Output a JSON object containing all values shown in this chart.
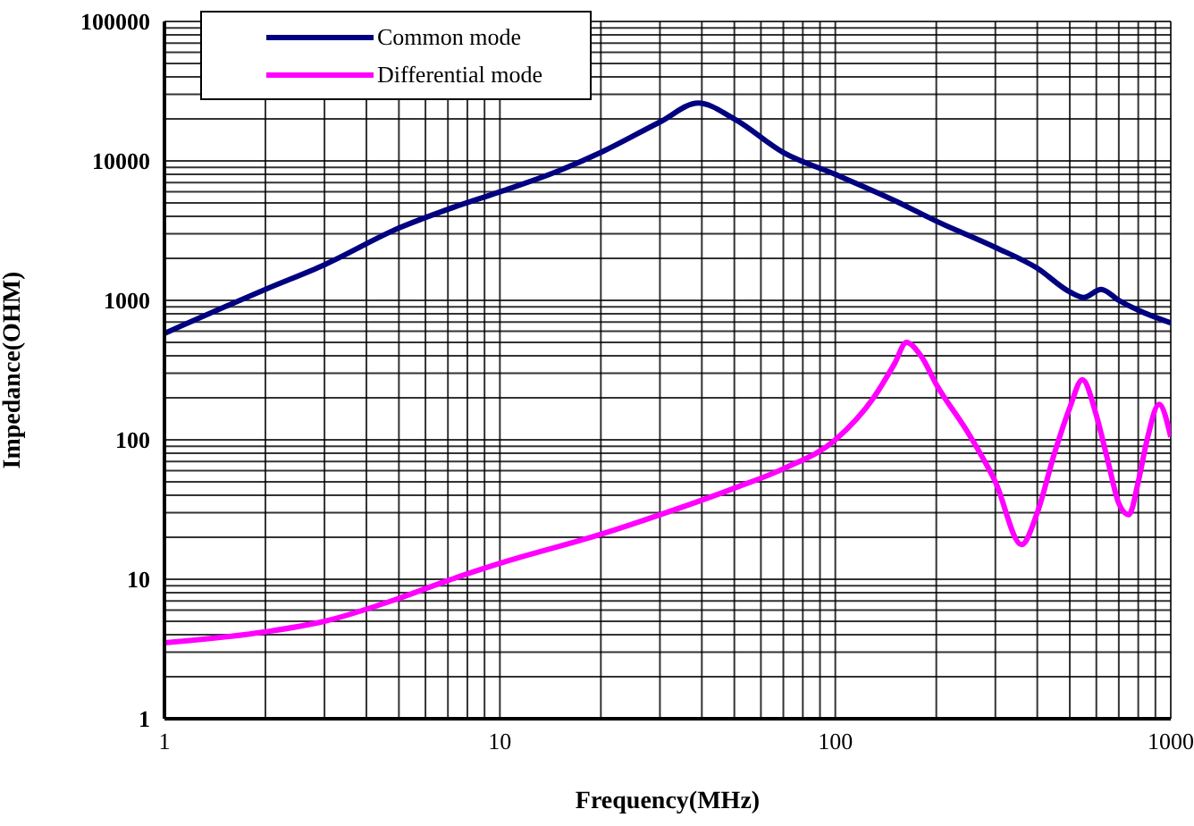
{
  "chart_data": {
    "type": "line",
    "xlabel": "Frequency(MHz)",
    "ylabel": "Impedance(OHM)",
    "log": "xy",
    "grid": true,
    "legend": "top left",
    "marker": "none",
    "line_style": "solid",
    "xlim": [
      1,
      1000
    ],
    "ylim": [
      1,
      100000
    ],
    "xticks": [
      1,
      {
        "value": 2,
        "label": null
      },
      {
        "value": 3,
        "label": null
      },
      {
        "value": 4,
        "label": null
      },
      {
        "value": 5,
        "label": null
      },
      {
        "value": 6,
        "label": null
      },
      {
        "value": 7,
        "label": null
      },
      {
        "value": 8,
        "label": null
      },
      {
        "value": 9,
        "label": null
      },
      10,
      {
        "value": 20,
        "label": null
      },
      {
        "value": 30,
        "label": null
      },
      {
        "value": 40,
        "label": null
      },
      {
        "value": 50,
        "label": null
      },
      {
        "value": 60,
        "label": null
      },
      {
        "value": 70,
        "label": null
      },
      {
        "value": 80,
        "label": null
      },
      {
        "value": 90,
        "label": null
      },
      100,
      {
        "value": 200,
        "label": null
      },
      {
        "value": 300,
        "label": null
      },
      {
        "value": 400,
        "label": null
      },
      {
        "value": 500,
        "label": null
      },
      {
        "value": 600,
        "label": null
      },
      {
        "value": 700,
        "label": null
      },
      {
        "value": 800,
        "label": null
      },
      {
        "value": 900,
        "label": null
      },
      1000
    ],
    "yticks": [
      1,
      {
        "value": 2,
        "label": null
      },
      {
        "value": 3,
        "label": null
      },
      {
        "value": 4,
        "label": null
      },
      {
        "value": 5,
        "label": null
      },
      {
        "value": 6,
        "label": null
      },
      {
        "value": 7,
        "label": null
      },
      {
        "value": 8,
        "label": null
      },
      {
        "value": 9,
        "label": null
      },
      10,
      {
        "value": 20,
        "label": null
      },
      {
        "value": 30,
        "label": null
      },
      {
        "value": 40,
        "label": null
      },
      {
        "value": 50,
        "label": null
      },
      {
        "value": 60,
        "label": null
      },
      {
        "value": 70,
        "label": null
      },
      {
        "value": 80,
        "label": null
      },
      {
        "value": 90,
        "label": null
      },
      100,
      {
        "value": 200,
        "label": null
      },
      {
        "value": 300,
        "label": null
      },
      {
        "value": 400,
        "label": null
      },
      {
        "value": 500,
        "label": null
      },
      {
        "value": 600,
        "label": null
      },
      {
        "value": 700,
        "label": null
      },
      {
        "value": 800,
        "label": null
      },
      {
        "value": 900,
        "label": null
      },
      1000,
      {
        "value": 2000,
        "label": null
      },
      {
        "value": 3000,
        "label": null
      },
      {
        "value": 4000,
        "label": null
      },
      {
        "value": 5000,
        "label": null
      },
      {
        "value": 6000,
        "label": null
      },
      {
        "value": 7000,
        "label": null
      },
      {
        "value": 8000,
        "label": null
      },
      {
        "value": 9000,
        "label": null
      },
      10000,
      {
        "value": 20000,
        "label": null
      },
      {
        "value": 30000,
        "label": null
      },
      {
        "value": 40000,
        "label": null
      },
      {
        "value": 50000,
        "label": null
      },
      {
        "value": 60000,
        "label": null
      },
      {
        "value": 70000,
        "label": null
      },
      {
        "value": 80000,
        "label": null
      },
      {
        "value": 90000,
        "label": null
      },
      100000
    ],
    "series": [
      {
        "name": "Common mode",
        "color": "#000080",
        "x": [
          1,
          2,
          3,
          5,
          7,
          10,
          15,
          20,
          30,
          39,
          50,
          70,
          100,
          150,
          200,
          300,
          400,
          500,
          550,
          620,
          700,
          800,
          1000
        ],
        "values": [
          580,
          1200,
          1800,
          3300,
          4500,
          6000,
          8500,
          11500,
          19000,
          26000,
          20000,
          11500,
          8000,
          5200,
          3700,
          2400,
          1700,
          1150,
          1050,
          1200,
          1000,
          850,
          690
        ]
      },
      {
        "name": "Differential mode",
        "color": "#ff00ff",
        "x": [
          1,
          2,
          3,
          5,
          7,
          10,
          20,
          30,
          50,
          70,
          100,
          130,
          150,
          163,
          180,
          200,
          250,
          300,
          359,
          400,
          450,
          500,
          545,
          600,
          650,
          700,
          750,
          800,
          850,
          923,
          1000
        ],
        "values": [
          3.5,
          4.2,
          5,
          7.3,
          9.8,
          13,
          21,
          29,
          45,
          62,
          100,
          200,
          350,
          500,
          400,
          250,
          110,
          50,
          17.7,
          30,
          80,
          170,
          270,
          150,
          70,
          35,
          29,
          50,
          100,
          180,
          105
        ]
      }
    ]
  }
}
